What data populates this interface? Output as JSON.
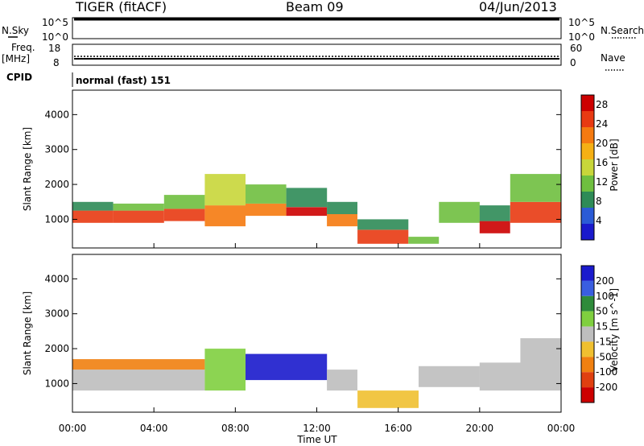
{
  "header": {
    "radar": "TIGER (fitACF)",
    "beam": "Beam 09",
    "date": "04/Jun/2013"
  },
  "strips": {
    "nsky_label": "N.Sky",
    "nsky_ticks": [
      "10^5",
      "10^0"
    ],
    "nsearch_label": "N.Search",
    "nsearch_ticks": [
      "10^5",
      "10^0"
    ],
    "freq_label": "Freq.",
    "freq_unit": "[MHz]",
    "freq_ticks": [
      "18",
      "8"
    ],
    "nave_label": "Nave",
    "nave_ticks": [
      "60",
      "0"
    ],
    "cpid_label": "CPID",
    "cpid_text": "normal (fast) 151"
  },
  "colors": {
    "power": [
      "#1a1acc",
      "#2b5bd6",
      "#2e8b57",
      "#6fbf3f",
      "#c8d63a",
      "#f5b014",
      "#f57a10",
      "#e83a12",
      "#cc0000"
    ],
    "velocity": [
      "#1a1acc",
      "#3a5ee0",
      "#2e8b3a",
      "#7fcf3f",
      "#bebebe",
      "#f0c030",
      "#f08010",
      "#e04010",
      "#cc0000"
    ]
  },
  "chart_data": [
    {
      "type": "heatmap",
      "name": "power",
      "ylabel": "Slant Range [km]",
      "xlabel": "",
      "y_ticks": [
        1000,
        2000,
        3000,
        4000
      ],
      "ylim": [
        180,
        4700
      ],
      "xlim": [
        0,
        24
      ],
      "colorbar": {
        "label": "Power [dB]",
        "ticks": [
          4,
          8,
          12,
          16,
          20,
          24,
          28
        ],
        "range": [
          0,
          30
        ]
      },
      "bands": [
        {
          "t0": 0.0,
          "t1": 2.0,
          "r0": 900,
          "r1": 1250,
          "v": 24
        },
        {
          "t0": 0.0,
          "t1": 2.0,
          "r0": 1250,
          "r1": 1500,
          "v": 8
        },
        {
          "t0": 2.0,
          "t1": 4.5,
          "r0": 900,
          "r1": 1250,
          "v": 26
        },
        {
          "t0": 2.0,
          "t1": 4.5,
          "r0": 1250,
          "r1": 1450,
          "v": 10
        },
        {
          "t0": 4.5,
          "t1": 6.5,
          "r0": 950,
          "r1": 1300,
          "v": 25
        },
        {
          "t0": 4.5,
          "t1": 6.5,
          "r0": 1300,
          "r1": 1700,
          "v": 12
        },
        {
          "t0": 6.5,
          "t1": 8.5,
          "r0": 800,
          "r1": 1400,
          "v": 23
        },
        {
          "t0": 6.5,
          "t1": 8.5,
          "r0": 1400,
          "r1": 2300,
          "v": 14
        },
        {
          "t0": 8.5,
          "t1": 10.5,
          "r0": 1100,
          "r1": 1450,
          "v": 20
        },
        {
          "t0": 8.5,
          "t1": 10.5,
          "r0": 1450,
          "r1": 2000,
          "v": 10
        },
        {
          "t0": 10.5,
          "t1": 12.5,
          "r0": 1100,
          "r1": 1350,
          "v": 27
        },
        {
          "t0": 10.5,
          "t1": 12.5,
          "r0": 1350,
          "r1": 1900,
          "v": 9
        },
        {
          "t0": 12.5,
          "t1": 14.0,
          "r0": 800,
          "r1": 1150,
          "v": 22
        },
        {
          "t0": 12.5,
          "t1": 14.0,
          "r0": 1150,
          "r1": 1500,
          "v": 8
        },
        {
          "t0": 14.0,
          "t1": 16.5,
          "r0": 300,
          "r1": 700,
          "v": 26
        },
        {
          "t0": 14.0,
          "t1": 16.5,
          "r0": 700,
          "r1": 1000,
          "v": 9
        },
        {
          "t0": 16.5,
          "t1": 18.0,
          "r0": 300,
          "r1": 500,
          "v": 12
        },
        {
          "t0": 18.0,
          "t1": 20.0,
          "r0": 900,
          "r1": 1500,
          "v": 10
        },
        {
          "t0": 20.0,
          "t1": 21.5,
          "r0": 600,
          "r1": 950,
          "v": 27
        },
        {
          "t0": 20.0,
          "t1": 21.5,
          "r0": 950,
          "r1": 1400,
          "v": 8
        },
        {
          "t0": 21.5,
          "t1": 24.0,
          "r0": 900,
          "r1": 1500,
          "v": 25
        },
        {
          "t0": 21.5,
          "t1": 24.0,
          "r0": 1500,
          "r1": 2300,
          "v": 10
        }
      ]
    },
    {
      "type": "heatmap",
      "name": "velocity",
      "ylabel": "Slant Range [km]",
      "xlabel": "Time UT",
      "y_ticks": [
        1000,
        2000,
        3000,
        4000
      ],
      "ylim": [
        180,
        4700
      ],
      "xlim": [
        0,
        24
      ],
      "x_ticks": [
        "00:00",
        "04:00",
        "08:00",
        "12:00",
        "16:00",
        "20:00",
        "00:00"
      ],
      "colorbar": {
        "label": "Velocity [m s^-1]",
        "ticks": [
          200,
          100,
          50,
          15,
          -15,
          -50,
          -100,
          -200
        ]
      },
      "bands": [
        {
          "t0": 0.0,
          "t1": 6.5,
          "r0": 800,
          "r1": 1400,
          "v": 0
        },
        {
          "t0": 0.0,
          "t1": 6.5,
          "r0": 1400,
          "r1": 1700,
          "v": -60
        },
        {
          "t0": 6.5,
          "t1": 8.5,
          "r0": 800,
          "r1": 2000,
          "v": 30
        },
        {
          "t0": 8.5,
          "t1": 12.5,
          "r0": 1100,
          "r1": 1850,
          "v": 220
        },
        {
          "t0": 12.5,
          "t1": 14.0,
          "r0": 800,
          "r1": 1400,
          "v": 0
        },
        {
          "t0": 14.0,
          "t1": 17.0,
          "r0": 300,
          "r1": 800,
          "v": -40
        },
        {
          "t0": 17.0,
          "t1": 20.0,
          "r0": 900,
          "r1": 1500,
          "v": 0
        },
        {
          "t0": 20.0,
          "t1": 24.0,
          "r0": 800,
          "r1": 1600,
          "v": 0
        },
        {
          "t0": 22.0,
          "t1": 24.0,
          "r0": 1600,
          "r1": 2300,
          "v": 5
        }
      ]
    }
  ]
}
